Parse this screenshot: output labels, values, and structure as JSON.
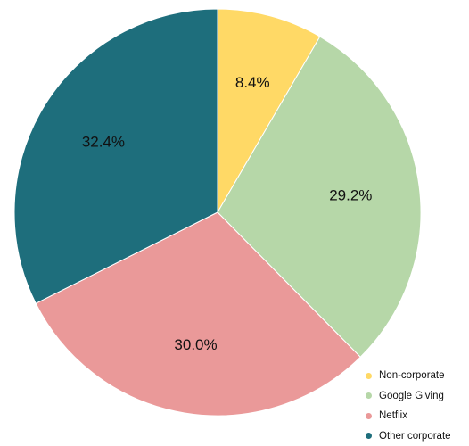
{
  "chart_data": {
    "type": "pie",
    "slices": [
      {
        "label": "Non-corporate",
        "value": 8.4,
        "display": "8.4%",
        "color": "#FFD966"
      },
      {
        "label": "Google Giving",
        "value": 29.2,
        "display": "29.2%",
        "color": "#B6D7A8"
      },
      {
        "label": "Netflix",
        "value": 30.0,
        "display": "30.0%",
        "color": "#EA9999"
      },
      {
        "label": "Other corporate",
        "value": 32.4,
        "display": "32.4%",
        "color": "#1E6E7C"
      }
    ],
    "start_angle": "12 o'clock",
    "direction": "clockwise",
    "legend_position": "bottom-right",
    "title": ""
  }
}
